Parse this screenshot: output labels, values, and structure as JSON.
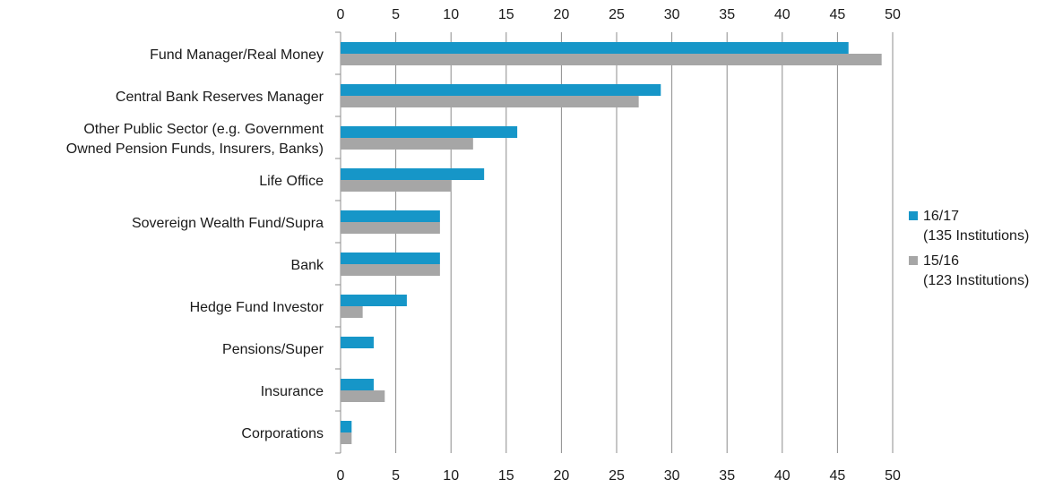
{
  "chart_data": {
    "type": "bar",
    "orientation": "horizontal",
    "title": "",
    "xlabel": "",
    "ylabel": "",
    "xlim": [
      0,
      50
    ],
    "x_ticks": [
      "0",
      "5",
      "10",
      "15",
      "20",
      "25",
      "30",
      "35",
      "40",
      "45",
      "50"
    ],
    "x_tick_values": [
      0,
      5,
      10,
      15,
      20,
      25,
      30,
      35,
      40,
      45,
      50
    ],
    "tick_labels_top_and_bottom": true,
    "grid": "vertical",
    "legend_position": "right",
    "categories": [
      "Fund Manager/Real Money",
      "Central Bank Reserves Manager",
      "Other Public Sector (e.g. Government Owned Pension Funds, Insurers, Banks)",
      "Life Office",
      "Sovereign Wealth Fund/Supra",
      "Bank",
      "Hedge Fund Investor",
      "Pensions/Super",
      "Insurance",
      "Corporations"
    ],
    "category_label_lines": [
      [
        "Fund Manager/Real Money"
      ],
      [
        "Central Bank Reserves Manager"
      ],
      [
        "Other Public Sector (e.g. Government",
        "Owned Pension Funds, Insurers, Banks)"
      ],
      [
        "Life Office"
      ],
      [
        "Sovereign Wealth Fund/Supra"
      ],
      [
        "Bank"
      ],
      [
        "Hedge Fund Investor"
      ],
      [
        "Pensions/Super"
      ],
      [
        "Insurance"
      ],
      [
        "Corporations"
      ]
    ],
    "series": [
      {
        "name": "16/17 (135 Institutions)",
        "legend_lines": [
          "16/17",
          "(135 Institutions)"
        ],
        "color": "#1696c8",
        "values": [
          46,
          29,
          16,
          13,
          9,
          9,
          6,
          3,
          3,
          1
        ]
      },
      {
        "name": "15/16 (123 Institutions)",
        "legend_lines": [
          "15/16",
          "(123 Institutions)"
        ],
        "color": "#a6a6a6",
        "values": [
          49,
          27,
          12,
          10,
          9,
          9,
          2,
          0,
          4,
          1
        ]
      }
    ]
  }
}
